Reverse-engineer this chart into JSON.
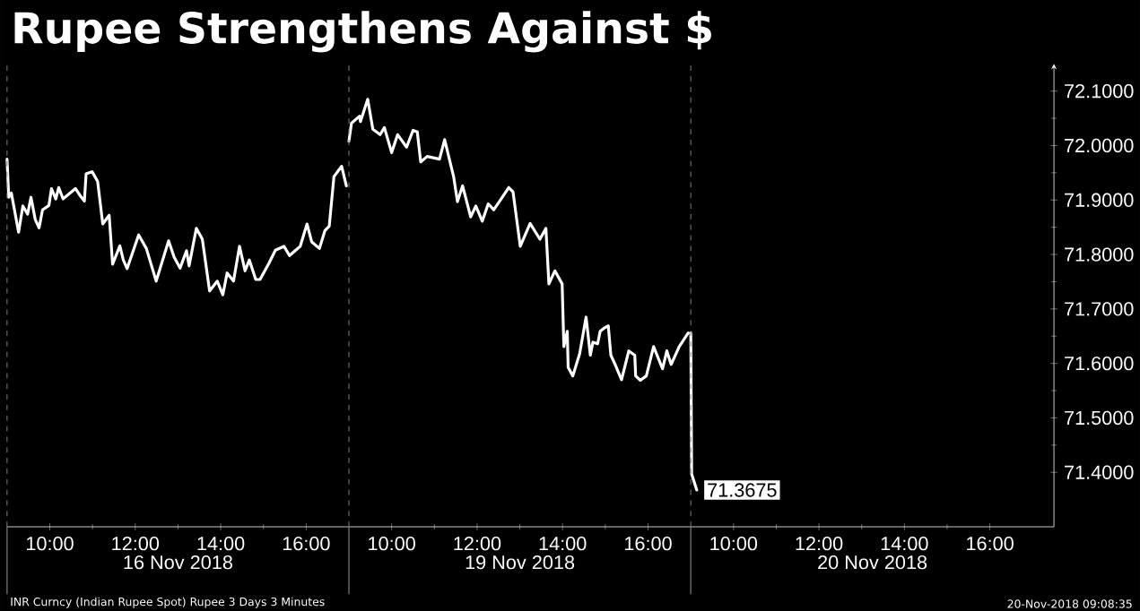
{
  "chart_data": [
    {
      "type": "line",
      "title": "Rupee Strengthens Against $",
      "xlabel": "16 Nov 2018",
      "x": [
        9,
        9.04,
        9.1,
        9.27,
        9.37,
        9.48,
        9.56,
        9.66,
        9.75,
        9.83,
        9.98,
        10.04,
        10.14,
        10.21,
        10.31,
        10.6,
        10.72,
        10.81,
        10.85,
        10.99,
        11.12,
        11.24,
        11.39,
        11.47,
        11.64,
        11.72,
        11.81,
        12.08,
        12.26,
        12.49,
        12.78,
        12.91,
        13.05,
        13.2,
        13.26,
        13.43,
        13.57,
        13.74,
        13.92,
        14.05,
        14.15,
        14.3,
        14.44,
        14.57,
        14.67,
        14.82,
        14.92,
        15.13,
        15.28,
        15.48,
        15.61,
        15.86,
        16.02,
        16.13,
        16.31,
        16.44,
        16.54,
        16.65,
        16.83,
        16.94
      ],
      "series": [
        {
          "color": "#ffffff",
          "values": [
            71.975,
            71.905,
            71.913,
            71.841,
            71.889,
            71.874,
            71.905,
            71.864,
            71.849,
            71.882,
            71.89,
            71.921,
            71.902,
            71.923,
            71.902,
            71.921,
            71.907,
            71.898,
            71.948,
            71.952,
            71.934,
            71.856,
            71.872,
            71.782,
            71.816,
            71.79,
            71.774,
            71.836,
            71.811,
            71.751,
            71.825,
            71.795,
            71.775,
            71.807,
            71.779,
            71.848,
            71.828,
            71.733,
            71.751,
            71.726,
            71.766,
            71.751,
            71.815,
            71.77,
            71.79,
            71.754,
            71.754,
            71.784,
            71.808,
            71.815,
            71.798,
            71.815,
            71.856,
            71.823,
            71.811,
            71.844,
            71.852,
            71.943,
            71.962,
            71.926
          ]
        }
      ],
      "xlim": [
        9,
        17
      ],
      "ylim": [
        71.3,
        72.15
      ],
      "xticks": [
        {
          "value": 10,
          "label": "10:00"
        },
        {
          "value": 12,
          "label": "12:00"
        },
        {
          "value": 14,
          "label": "14:00"
        },
        {
          "value": 16,
          "label": "16:00"
        }
      ],
      "tick_labels": "x",
      "ref_lines": [
        {
          "axis": "x",
          "value": 9,
          "color": "#808080",
          "line_style": "dashed"
        }
      ],
      "annotations": [
        "INR Curncy (Indian Rupee Spot) Rupee 3 Days 3 Minutes"
      ]
    },
    {
      "type": "line",
      "xlabel": "19 Nov 2018",
      "x": [
        9.0,
        9.06,
        9.25,
        9.27,
        9.44,
        9.56,
        9.73,
        9.83,
        10.0,
        10.14,
        10.35,
        10.5,
        10.6,
        10.68,
        10.83,
        11.12,
        11.24,
        11.45,
        11.54,
        11.66,
        11.85,
        11.97,
        12.12,
        12.26,
        12.39,
        12.53,
        12.74,
        12.84,
        13.01,
        13.24,
        13.47,
        13.61,
        13.68,
        13.82,
        13.99,
        14.03,
        14.11,
        14.13,
        14.24,
        14.4,
        14.55,
        14.65,
        14.71,
        14.82,
        14.88,
        14.96,
        15.07,
        15.13,
        15.23,
        15.38,
        15.55,
        15.69,
        15.71,
        15.82,
        15.96,
        16.13,
        16.34,
        16.44,
        16.54,
        16.73,
        16.94
      ],
      "series": [
        {
          "color": "#ffffff",
          "values": [
            72.008,
            72.041,
            72.054,
            72.044,
            72.085,
            72.03,
            72.02,
            72.033,
            71.987,
            72.02,
            71.997,
            72.028,
            72.025,
            71.97,
            71.98,
            71.975,
            72.011,
            71.943,
            71.897,
            71.926,
            71.869,
            71.889,
            71.861,
            71.893,
            71.882,
            71.898,
            71.923,
            71.915,
            71.815,
            71.857,
            71.828,
            71.848,
            71.746,
            71.77,
            71.746,
            71.631,
            71.659,
            71.593,
            71.577,
            71.618,
            71.685,
            71.615,
            71.639,
            71.636,
            71.659,
            71.664,
            71.669,
            71.615,
            71.598,
            71.57,
            71.623,
            71.615,
            71.577,
            71.569,
            71.577,
            71.631,
            71.59,
            71.623,
            71.598,
            71.631,
            71.656
          ]
        }
      ],
      "xlim": [
        9,
        17
      ],
      "ylim": [
        71.3,
        72.15
      ],
      "xticks": [
        {
          "value": 10,
          "label": "10:00"
        },
        {
          "value": 12,
          "label": "12:00"
        },
        {
          "value": 14,
          "label": "14:00"
        },
        {
          "value": 16,
          "label": "16:00"
        }
      ],
      "tick_labels": "x",
      "ref_lines": [
        {
          "axis": "x",
          "value": 9,
          "color": "#808080",
          "line_style": "dashed"
        }
      ]
    },
    {
      "type": "line",
      "xlabel": "20 Nov 2018",
      "x": [
        9.0,
        9.02,
        9.14
      ],
      "series": [
        {
          "color": "#ffffff",
          "values": [
            71.656,
            71.397,
            71.3675
          ],
          "value_labels": [
            null,
            null,
            "71.3675"
          ]
        }
      ],
      "xlim": [
        9,
        17.5
      ],
      "ylim": [
        71.3,
        72.15
      ],
      "xticks": [
        {
          "value": 10,
          "label": "10:00"
        },
        {
          "value": 12,
          "label": "12:00"
        },
        {
          "value": 14,
          "label": "14:00"
        },
        {
          "value": 16,
          "label": "16:00"
        }
      ],
      "yticks": [
        {
          "value": 71.4,
          "label": "71.4000"
        },
        {
          "value": 71.5,
          "label": "71.5000"
        },
        {
          "value": 71.6,
          "label": "71.6000"
        },
        {
          "value": 71.7,
          "label": "71.7000"
        },
        {
          "value": 71.8,
          "label": "71.8000"
        },
        {
          "value": 71.9,
          "label": "71.9000"
        },
        {
          "value": 72.0,
          "label": "72.0000"
        },
        {
          "value": 72.1,
          "label": "72.1000"
        }
      ],
      "ref_lines": [
        {
          "axis": "x",
          "value": 9,
          "color": "#808080",
          "line_style": "dashed"
        }
      ],
      "annotations": [
        "20-Nov-2018 09:08:35"
      ]
    }
  ]
}
